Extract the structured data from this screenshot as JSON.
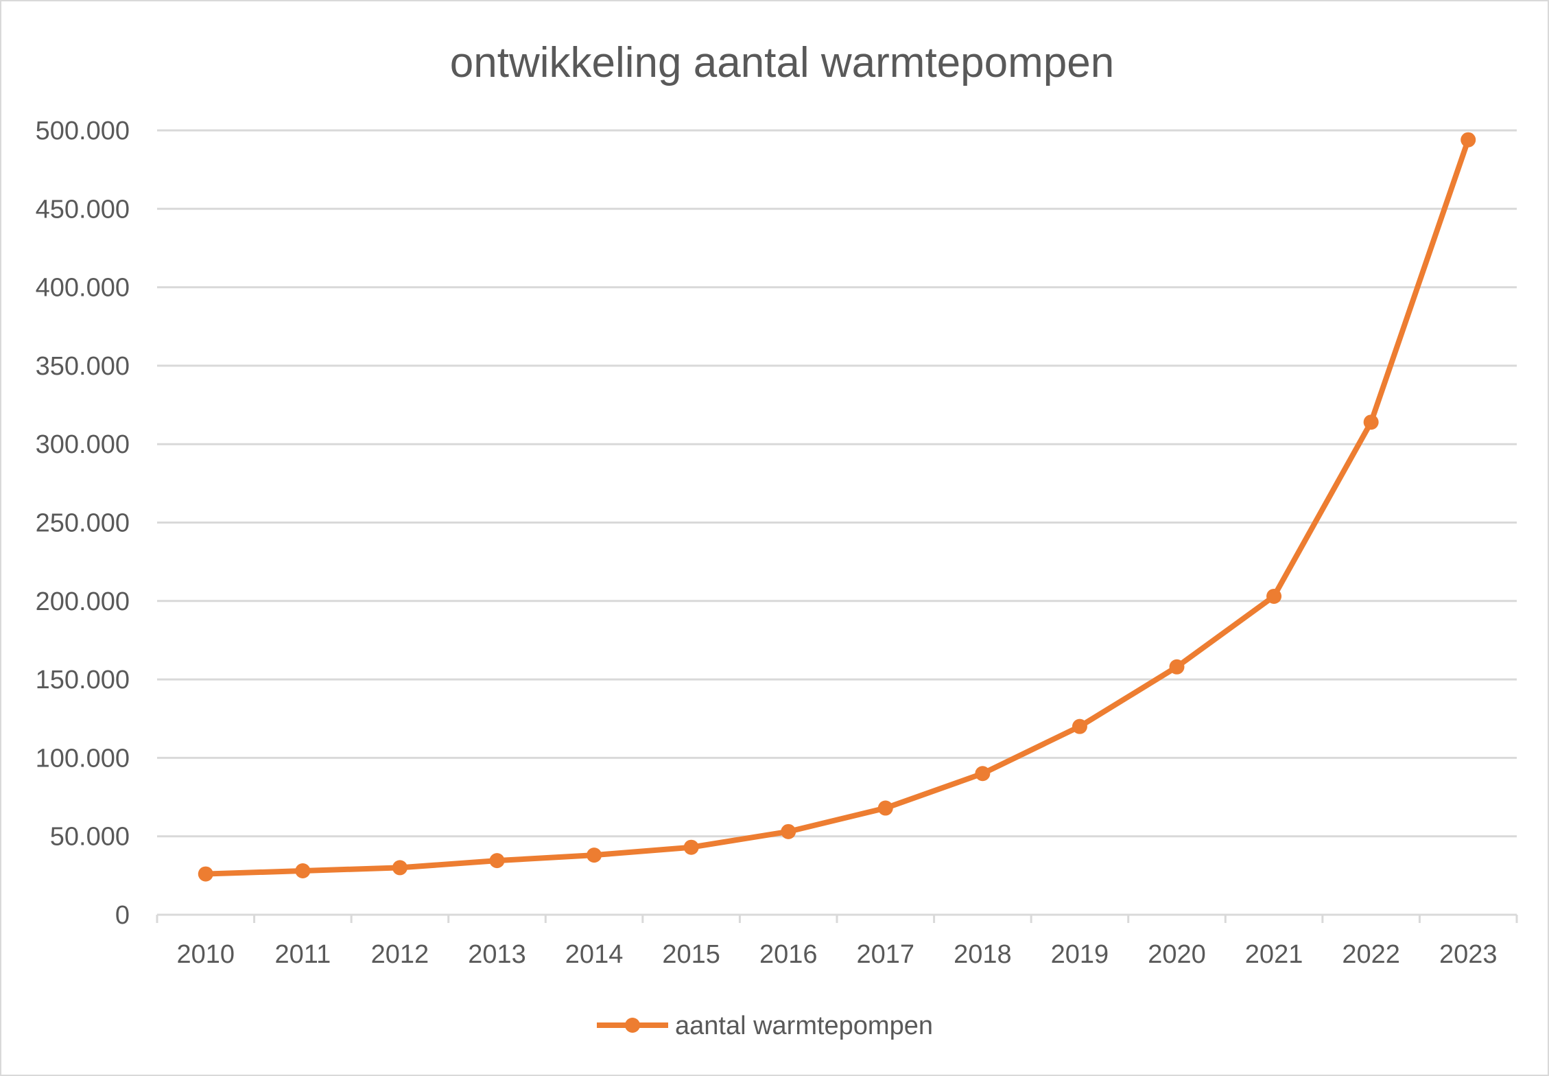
{
  "chart_data": {
    "type": "line",
    "title": "ontwikkeling aantal warmtepompen",
    "xlabel": "",
    "ylabel": "",
    "x": [
      "2010",
      "2011",
      "2012",
      "2013",
      "2014",
      "2015",
      "2016",
      "2017",
      "2018",
      "2019",
      "2020",
      "2021",
      "2022",
      "2023"
    ],
    "series": [
      {
        "name": "aantal warmtepompen",
        "values": [
          26000,
          28000,
          30000,
          34500,
          38000,
          43000,
          53000,
          68000,
          90000,
          120000,
          158000,
          203000,
          314000,
          494000
        ],
        "color": "#ED7D31"
      }
    ],
    "ylim": [
      0,
      500000
    ],
    "y_ticks": [
      "0",
      "50.000",
      "100.000",
      "150.000",
      "200.000",
      "250.000",
      "300.000",
      "350.000",
      "400.000",
      "450.000",
      "500.000"
    ],
    "grid": true,
    "legend_position": "bottom"
  }
}
